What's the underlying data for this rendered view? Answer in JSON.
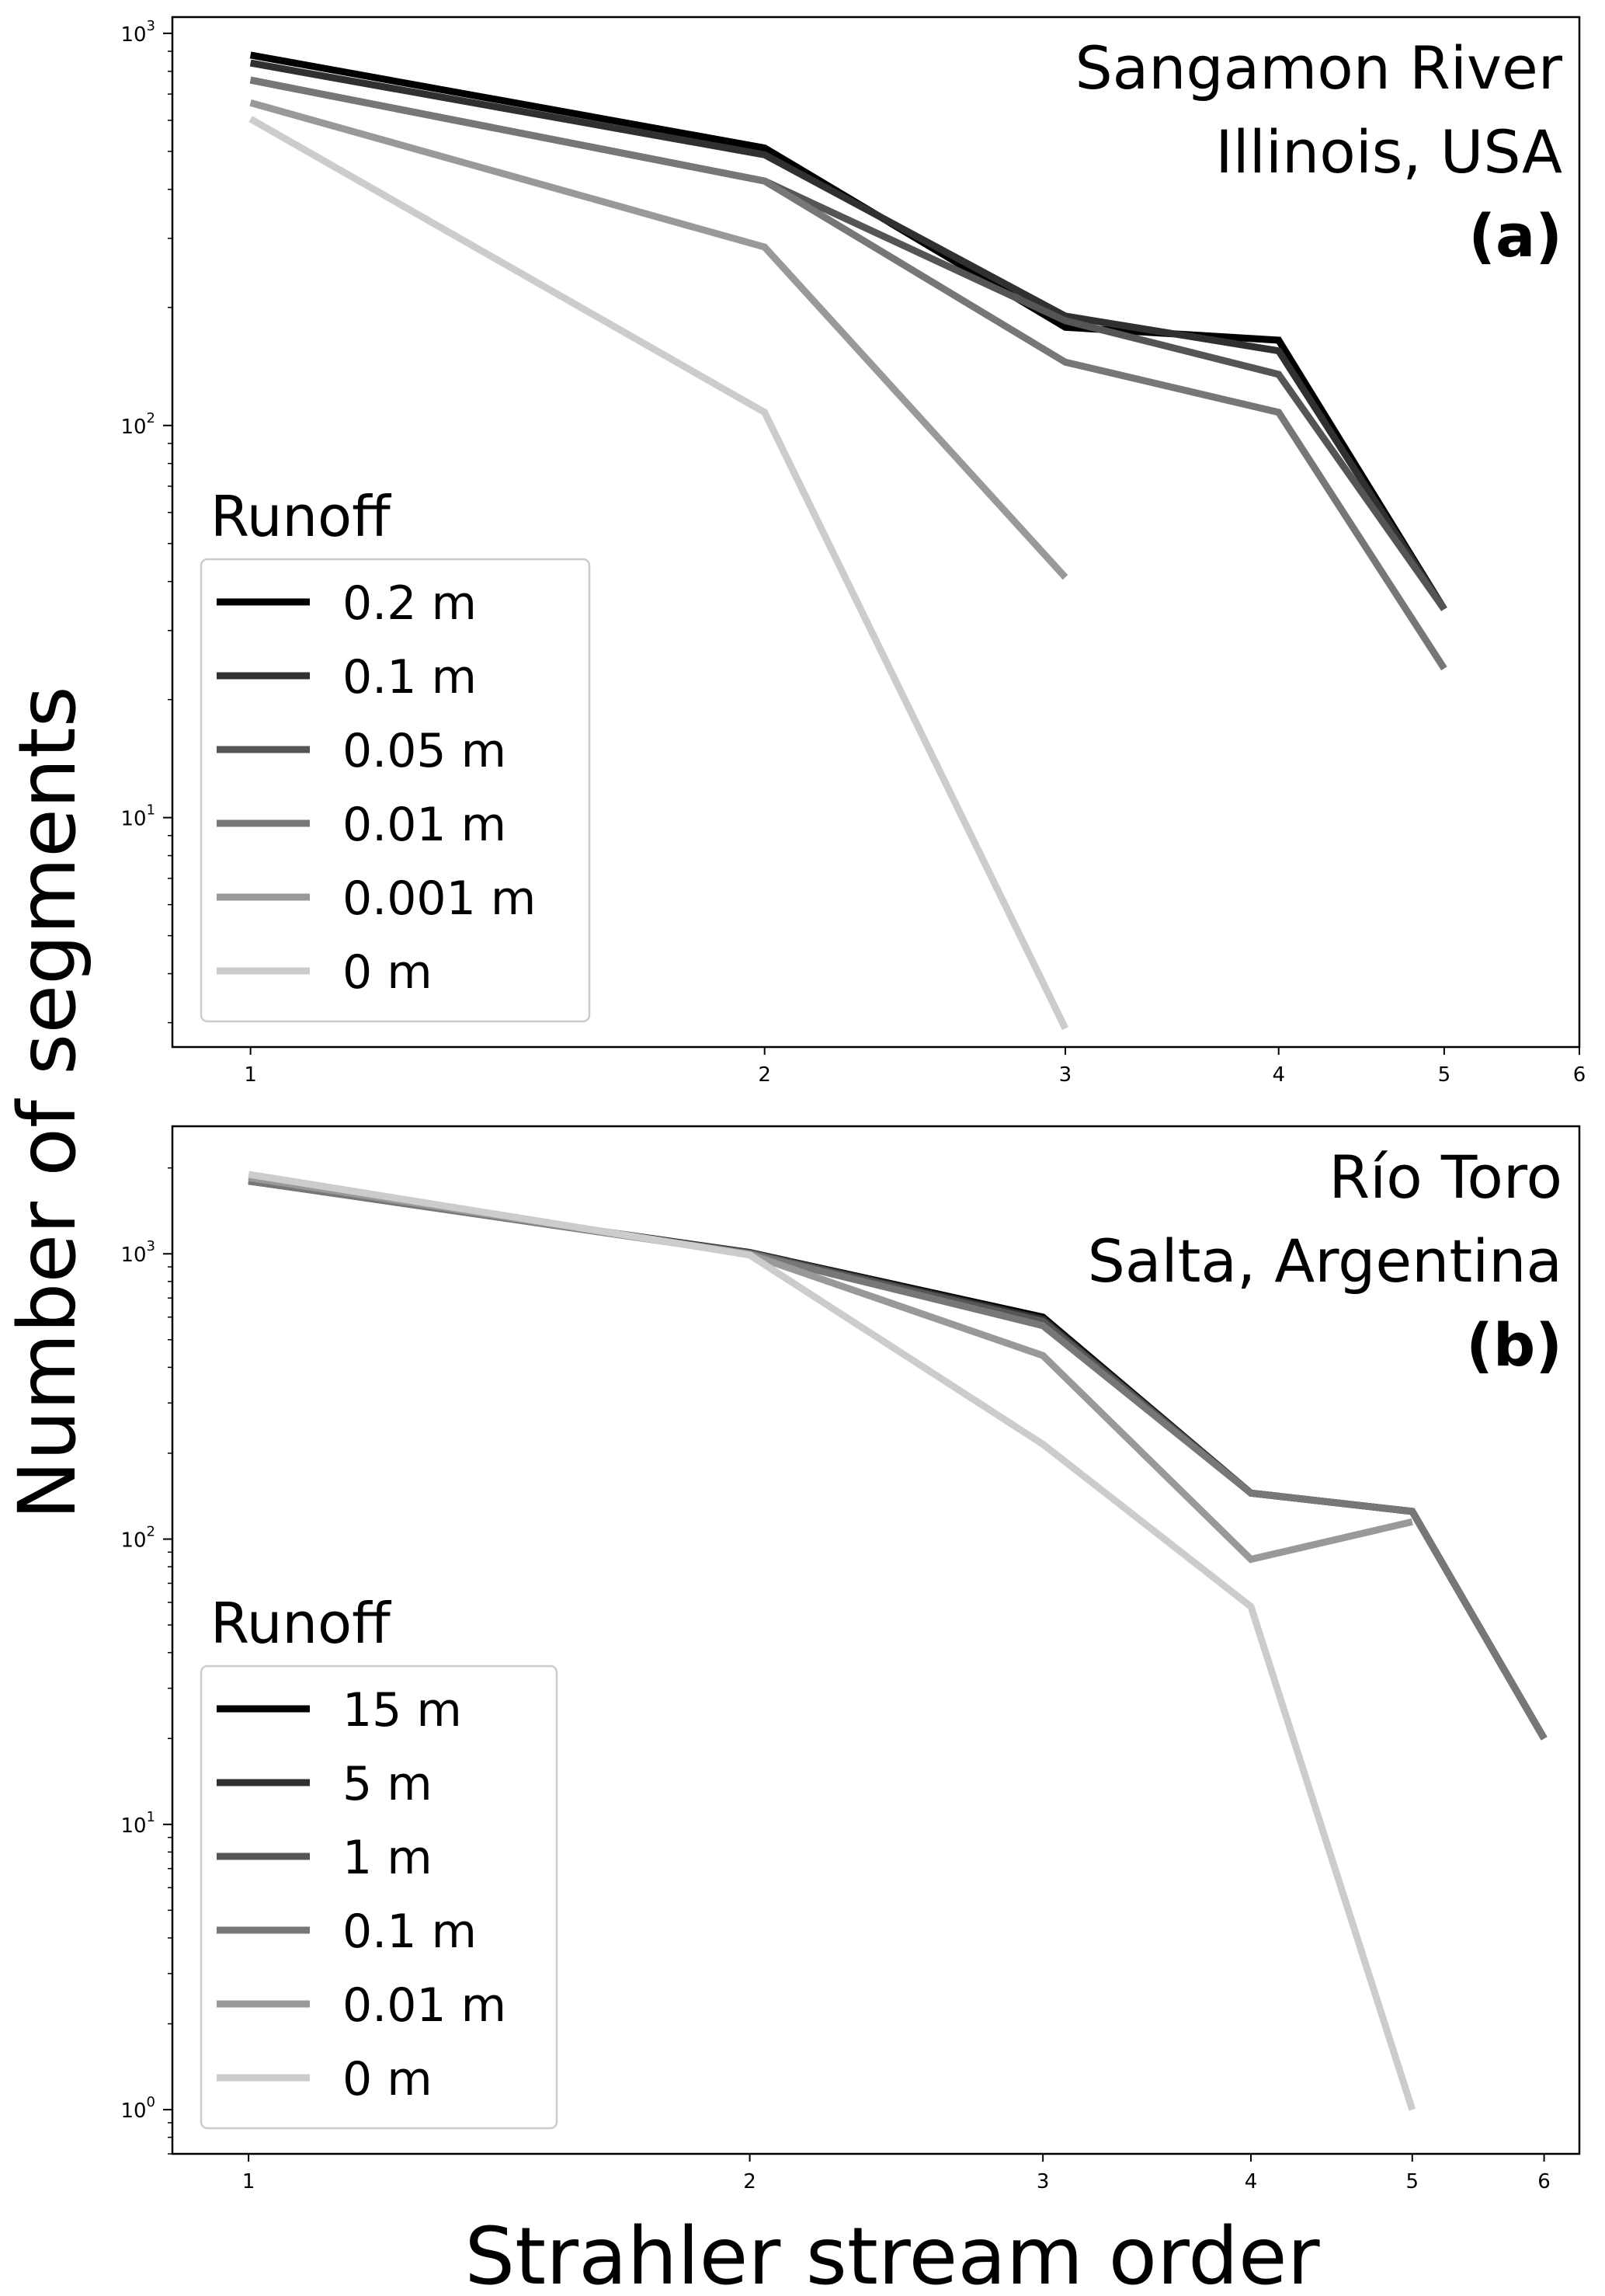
{
  "ylabel": "Number of segments",
  "xlabel": "Strahler stream order",
  "chart_data": [
    {
      "type": "line",
      "panel": "a",
      "title_lines": [
        "Sangamon River",
        "Illinois, USA"
      ],
      "panel_label": "(a)",
      "xscale": "log",
      "yscale": "log",
      "xlim": [
        0.9,
        6
      ],
      "ylim": [
        2.6,
        1100
      ],
      "xticks": [
        1,
        2,
        3,
        4,
        5,
        6
      ],
      "yticks": [
        {
          "base": "10",
          "exp": "1",
          "value": 10
        },
        {
          "base": "10",
          "exp": "2",
          "value": 100
        },
        {
          "base": "10",
          "exp": "3",
          "value": 1000
        }
      ],
      "grid": false,
      "legend": {
        "title": "Runoff",
        "position": "lower-left"
      },
      "series": [
        {
          "name": "0.2 m",
          "color": "#000000",
          "x": [
            1,
            2,
            3,
            4,
            5
          ],
          "y": [
            880,
            510,
            178,
            165,
            34
          ]
        },
        {
          "name": "0.1 m",
          "color": "#303030",
          "x": [
            1,
            2,
            3,
            4,
            5
          ],
          "y": [
            840,
            490,
            190,
            155,
            34
          ]
        },
        {
          "name": "0.05 m",
          "color": "#555555",
          "x": [
            1,
            2,
            3,
            4,
            5
          ],
          "y": [
            760,
            420,
            185,
            135,
            34
          ]
        },
        {
          "name": "0.01 m",
          "color": "#777777",
          "x": [
            1,
            2,
            3,
            4,
            5
          ],
          "y": [
            760,
            420,
            145,
            108,
            24
          ]
        },
        {
          "name": "0.001 m",
          "color": "#999999",
          "x": [
            1,
            2,
            3
          ],
          "y": [
            665,
            285,
            41
          ]
        },
        {
          "name": "0 m",
          "color": "#cccccc",
          "x": [
            1,
            2,
            3
          ],
          "y": [
            605,
            108,
            2.9
          ]
        }
      ]
    },
    {
      "type": "line",
      "panel": "b",
      "title_lines": [
        "Río Toro",
        "Salta, Argentina"
      ],
      "panel_label": "(b)",
      "xscale": "log",
      "yscale": "log",
      "xlim": [
        0.9,
        6.3
      ],
      "ylim": [
        0.7,
        2800
      ],
      "xticks": [
        1,
        2,
        3,
        4,
        5,
        6
      ],
      "yticks": [
        {
          "base": "10",
          "exp": "0",
          "value": 1
        },
        {
          "base": "10",
          "exp": "1",
          "value": 10
        },
        {
          "base": "10",
          "exp": "2",
          "value": 100
        },
        {
          "base": "10",
          "exp": "3",
          "value": 1000
        }
      ],
      "grid": false,
      "legend": {
        "title": "Runoff",
        "position": "lower-left"
      },
      "series": [
        {
          "name": "15 m",
          "color": "#000000",
          "x": [
            1,
            2,
            3,
            4,
            5,
            6
          ],
          "y": [
            1800,
            1010,
            600,
            145,
            125,
            20
          ]
        },
        {
          "name": "5 m",
          "color": "#303030",
          "x": [
            1,
            2,
            3,
            4,
            5,
            6
          ],
          "y": [
            1800,
            1010,
            590,
            145,
            125,
            20
          ]
        },
        {
          "name": "1 m",
          "color": "#555555",
          "x": [
            1,
            2,
            3,
            4,
            5,
            6
          ],
          "y": [
            1800,
            1005,
            580,
            145,
            125,
            20
          ]
        },
        {
          "name": "0.1 m",
          "color": "#777777",
          "x": [
            1,
            2,
            3,
            4,
            5,
            6
          ],
          "y": [
            1800,
            1000,
            560,
            145,
            125,
            20
          ]
        },
        {
          "name": "0.01 m",
          "color": "#999999",
          "x": [
            1,
            2,
            3,
            4,
            5
          ],
          "y": [
            1850,
            995,
            440,
            85,
            115
          ]
        },
        {
          "name": "0 m",
          "color": "#cccccc",
          "x": [
            1,
            2,
            3,
            4,
            5
          ],
          "y": [
            1900,
            990,
            215,
            58,
            1
          ]
        }
      ]
    }
  ]
}
